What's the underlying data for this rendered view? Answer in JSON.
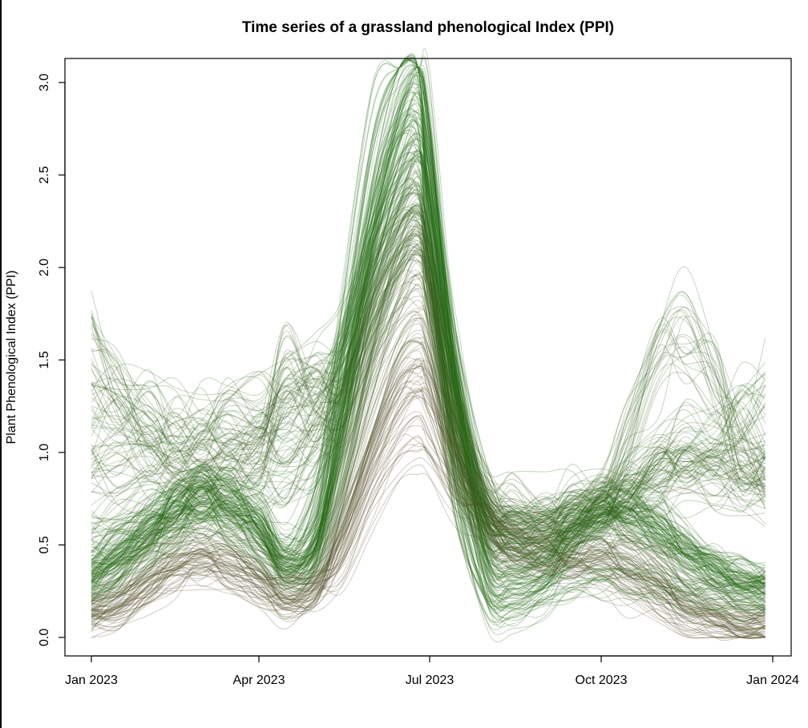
{
  "chart_data": {
    "type": "line",
    "title": "Time series of a grassland phenological Index (PPI)",
    "xlabel": "",
    "ylabel": "Plant Phenological Index (PPI)",
    "x_ticks": [
      "Jan 2023",
      "Apr 2023",
      "Jul 2023",
      "Oct 2023",
      "Jan 2024"
    ],
    "y_ticks": [
      "0.0",
      "0.5",
      "1.0",
      "1.5",
      "2.0",
      "2.5",
      "3.0"
    ],
    "xlim": [
      "2023-01-01",
      "2024-01-01"
    ],
    "ylim": [
      -0.1,
      3.13
    ],
    "grid": false,
    "legend": "none",
    "series_count_approx": 300,
    "colors": {
      "high_ppi": "#1f6b12",
      "low_ppi": "#5b4a2a"
    },
    "dates": [
      "2023-01-01",
      "2023-01-15",
      "2023-02-01",
      "2023-02-15",
      "2023-03-01",
      "2023-03-15",
      "2023-04-01",
      "2023-04-15",
      "2023-05-01",
      "2023-05-15",
      "2023-06-01",
      "2023-06-15",
      "2023-06-25",
      "2023-07-01",
      "2023-07-15",
      "2023-08-01",
      "2023-08-15",
      "2023-09-01",
      "2023-09-15",
      "2023-10-01",
      "2023-10-15",
      "2023-11-01",
      "2023-11-15",
      "2023-12-01",
      "2023-12-15",
      "2023-12-28"
    ],
    "series": [
      {
        "values": [
          0.3,
          0.4,
          0.55,
          0.68,
          0.74,
          0.7,
          0.56,
          0.38,
          0.5,
          1.2,
          2.2,
          2.8,
          3.02,
          2.7,
          1.4,
          0.45,
          0.35,
          0.4,
          0.55,
          0.68,
          0.7,
          0.6,
          0.48,
          0.38,
          0.3,
          0.28
        ]
      },
      {
        "values": [
          0.25,
          0.35,
          0.5,
          0.63,
          0.7,
          0.66,
          0.52,
          0.34,
          0.42,
          1.0,
          1.9,
          2.5,
          2.72,
          2.45,
          1.3,
          0.55,
          0.48,
          0.5,
          0.58,
          0.66,
          0.62,
          0.52,
          0.4,
          0.3,
          0.24,
          0.22
        ]
      },
      {
        "values": [
          0.15,
          0.22,
          0.35,
          0.46,
          0.52,
          0.48,
          0.36,
          0.25,
          0.32,
          0.75,
          1.4,
          1.85,
          2.0,
          1.85,
          1.15,
          0.62,
          0.55,
          0.52,
          0.5,
          0.54,
          0.5,
          0.38,
          0.25,
          0.15,
          0.1,
          0.08
        ]
      },
      {
        "values": [
          0.12,
          0.18,
          0.28,
          0.38,
          0.42,
          0.38,
          0.3,
          0.22,
          0.28,
          0.6,
          1.1,
          1.45,
          1.55,
          1.45,
          1.0,
          0.62,
          0.52,
          0.48,
          0.45,
          0.45,
          0.4,
          0.3,
          0.18,
          0.1,
          0.06,
          0.05
        ]
      },
      {
        "values": [
          0.4,
          0.5,
          0.62,
          0.75,
          0.8,
          0.76,
          0.62,
          0.42,
          0.55,
          1.35,
          2.45,
          2.95,
          3.06,
          2.55,
          1.2,
          0.3,
          0.22,
          0.3,
          0.5,
          0.66,
          0.72,
          0.62,
          0.5,
          0.4,
          0.34,
          0.32
        ]
      },
      {
        "values": [
          1.2,
          1.2,
          1.18,
          1.16,
          1.16,
          1.17,
          1.2,
          1.3,
          1.4,
          1.6,
          2.1,
          2.4,
          2.5,
          2.3,
          1.4,
          0.7,
          0.6,
          0.62,
          0.68,
          0.72,
          0.76,
          0.84,
          0.88,
          0.84,
          0.8,
          0.78
        ]
      },
      {
        "values": [
          0.9,
          0.92,
          0.94,
          0.95,
          0.95,
          0.96,
          1.0,
          1.48,
          1.3,
          1.5,
          2.0,
          2.3,
          2.38,
          2.2,
          1.4,
          0.7,
          0.62,
          0.6,
          0.64,
          0.7,
          0.8,
          0.9,
          0.94,
          0.92,
          0.9,
          0.9
        ]
      },
      {
        "values": [
          1.6,
          1.35,
          1.1,
          1.02,
          1.02,
          1.03,
          1.05,
          1.1,
          1.2,
          1.5,
          2.0,
          2.3,
          2.4,
          2.2,
          1.5,
          0.8,
          0.72,
          0.7,
          0.72,
          0.8,
          1.1,
          1.5,
          1.68,
          1.4,
          1.0,
          0.9
        ]
      },
      {
        "values": [
          0.35,
          0.45,
          0.58,
          0.7,
          0.76,
          0.72,
          0.6,
          0.45,
          0.7,
          1.6,
          2.6,
          2.95,
          2.9,
          2.1,
          0.8,
          0.18,
          0.16,
          0.2,
          0.28,
          0.3,
          0.3,
          0.26,
          0.22,
          0.2,
          0.2,
          0.2
        ]
      },
      {
        "values": [
          0.1,
          0.16,
          0.26,
          0.34,
          0.38,
          0.35,
          0.28,
          0.2,
          0.24,
          0.45,
          0.9,
          1.2,
          1.28,
          1.22,
          0.95,
          0.6,
          0.45,
          0.4,
          0.36,
          0.34,
          0.28,
          0.18,
          0.1,
          0.05,
          0.03,
          0.05
        ]
      },
      {
        "values": [
          0.55,
          0.6,
          0.66,
          0.72,
          0.76,
          0.78,
          0.8,
          0.85,
          0.95,
          1.4,
          2.1,
          2.55,
          2.62,
          2.35,
          1.4,
          0.7,
          0.6,
          0.58,
          0.62,
          0.7,
          0.8,
          0.95,
          1.05,
          1.1,
          1.2,
          1.3
        ]
      },
      {
        "values": [
          0.28,
          0.38,
          0.52,
          0.66,
          0.72,
          0.68,
          0.55,
          0.36,
          0.46,
          1.1,
          2.05,
          2.6,
          2.85,
          2.55,
          1.35,
          0.48,
          0.4,
          0.44,
          0.56,
          0.67,
          0.68,
          0.58,
          0.45,
          0.35,
          0.28,
          0.26
        ]
      }
    ]
  }
}
